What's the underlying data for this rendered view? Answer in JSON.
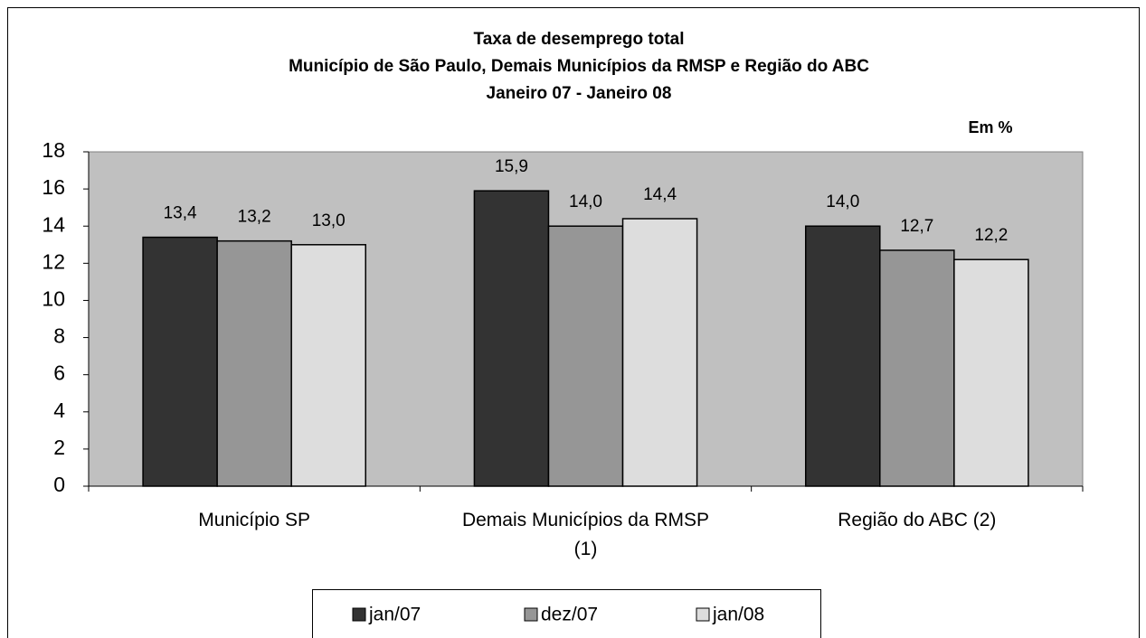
{
  "chart_data": {
    "type": "bar",
    "title": [
      "Taxa de desemprego total",
      "Município de São Paulo, Demais Municípios da RMSP e Região do ABC",
      "Janeiro 07 - Janeiro 08"
    ],
    "annotation": "Em %",
    "categories": [
      "Município SP",
      "Demais Municípios da RMSP (1)",
      "Região do ABC (2)"
    ],
    "series": [
      {
        "name": "jan/07",
        "color": "#333333",
        "values": [
          13.4,
          15.9,
          14.0
        ],
        "value_labels": [
          "13,4",
          "15,9",
          "14,0"
        ]
      },
      {
        "name": "dez/07",
        "color": "#969696",
        "values": [
          13.2,
          14.0,
          12.7
        ],
        "value_labels": [
          "13,2",
          "14,0",
          "12,7"
        ]
      },
      {
        "name": "jan/08",
        "color": "#dddddd",
        "values": [
          13.0,
          14.4,
          12.2
        ],
        "value_labels": [
          "13,0",
          "14,4",
          "12,2"
        ]
      }
    ],
    "ylim": [
      0,
      18
    ],
    "yticks": [
      0,
      2,
      4,
      6,
      8,
      10,
      12,
      14,
      16,
      18
    ],
    "plot_background": "#c0c0c0",
    "legend": "bottom"
  }
}
